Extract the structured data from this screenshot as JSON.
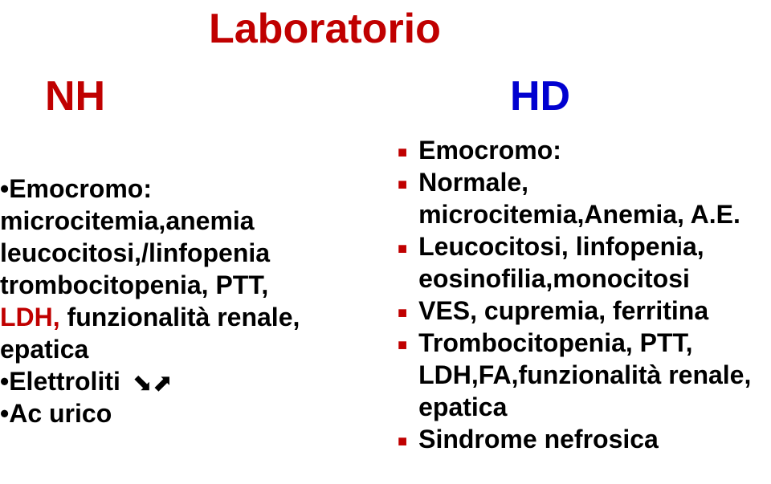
{
  "title_nh": "NH",
  "title_lab": "Laboratorio",
  "title_hd": "HD",
  "left": {
    "l1": "•Emocromo:",
    "l2": "microcitemia,anemia",
    "l3": "leucocitosi,/linfopenia",
    "l4": "trombocitopenia, PTT,",
    "l5_ldh": "LDH,",
    "l5_rest": " funzionalità renale,",
    "l6": "epatica",
    "l7a": "•Elettroliti ",
    "l8": "•Ac urico"
  },
  "right": {
    "r1": "Emocromo:",
    "r2": "Normale, microcitemia,Anemia, A.E.",
    "r3": "Leucocitosi, linfopenia, eosinofilia,monocitosi",
    "r4": "VES, cupremia, ferritina",
    "r5": " Trombocitopenia, PTT, LDH,FA,funzionalità renale, epatica",
    "r6": "Sindrome nefrosica"
  },
  "colors": {
    "red": "#c00000",
    "blue": "#0000d0",
    "text": "#000000",
    "background": "#ffffff"
  },
  "font": {
    "title_size": 52,
    "body_size": 32,
    "family": "Arial"
  }
}
